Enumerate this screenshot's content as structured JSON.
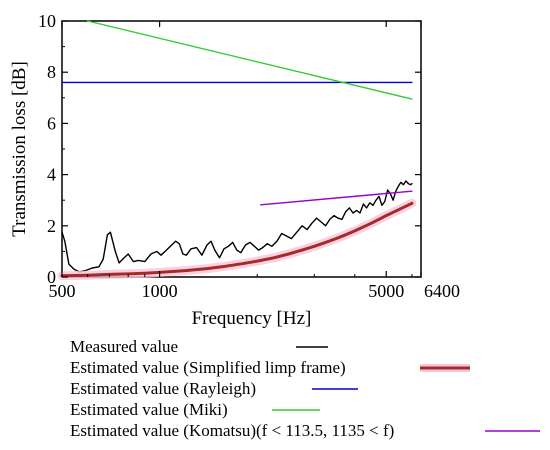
{
  "chart_data": {
    "type": "line",
    "xlabel": "Frequency [Hz]",
    "ylabel": "Transmission loss [dB]",
    "x_scale": "log",
    "xlim": [
      500,
      6400
    ],
    "ylim": [
      0,
      10
    ],
    "x_ticks": [
      {
        "value": 500,
        "label": "500"
      },
      {
        "value": 1000,
        "label": "1000"
      },
      {
        "value": 5000,
        "label": "5000"
      },
      {
        "value": 6400,
        "label": "6400"
      }
    ],
    "y_ticks": [
      {
        "value": 0,
        "label": "0"
      },
      {
        "value": 2,
        "label": "2"
      },
      {
        "value": 4,
        "label": "4"
      },
      {
        "value": 6,
        "label": "6"
      },
      {
        "value": 8,
        "label": "8"
      },
      {
        "value": 10,
        "label": "10"
      }
    ],
    "grid": false,
    "legend_position": "bottom",
    "series": [
      {
        "name": "Measured value",
        "color": "#000000",
        "x": [
          500,
          510,
          525,
          545,
          565,
          590,
          620,
          650,
          670,
          690,
          705,
          730,
          750,
          770,
          800,
          830,
          860,
          900,
          940,
          980,
          1010,
          1040,
          1080,
          1120,
          1150,
          1180,
          1210,
          1250,
          1300,
          1350,
          1400,
          1440,
          1480,
          1530,
          1580,
          1630,
          1680,
          1730,
          1780,
          1840,
          1900,
          1960,
          2020,
          2080,
          2150,
          2220,
          2300,
          2380,
          2460,
          2550,
          2650,
          2750,
          2850,
          2950,
          3050,
          3150,
          3250,
          3350,
          3450,
          3550,
          3650,
          3750,
          3850,
          3950,
          4050,
          4150,
          4250,
          4350,
          4450,
          4550,
          4650,
          4750,
          4850,
          4950,
          5050,
          5150,
          5250,
          5350,
          5450,
          5550,
          5650,
          5750,
          5850,
          5950,
          6000
        ],
        "y": [
          1.75,
          1.4,
          0.5,
          0.3,
          0.2,
          0.25,
          0.35,
          0.4,
          0.7,
          1.65,
          1.75,
          1.0,
          0.55,
          0.7,
          0.9,
          0.6,
          0.65,
          0.6,
          0.9,
          1.0,
          0.85,
          1.0,
          1.2,
          1.4,
          1.3,
          0.9,
          0.85,
          1.1,
          1.15,
          0.85,
          1.25,
          1.4,
          1.05,
          0.75,
          1.1,
          1.2,
          1.35,
          1.05,
          0.95,
          1.25,
          1.35,
          1.2,
          1.05,
          1.15,
          1.3,
          1.2,
          1.4,
          1.7,
          1.6,
          1.5,
          1.75,
          2.0,
          1.85,
          2.1,
          2.3,
          2.15,
          2.0,
          2.25,
          2.4,
          2.3,
          2.25,
          2.55,
          2.7,
          2.5,
          2.6,
          2.5,
          2.85,
          2.7,
          2.9,
          2.8,
          3.0,
          3.15,
          2.8,
          2.95,
          3.4,
          3.25,
          3.0,
          3.35,
          3.55,
          3.7,
          3.6,
          3.75,
          3.65,
          3.6,
          3.65
        ]
      },
      {
        "name": "Estimated value (Simplified limp frame)",
        "color": "#a52a2a",
        "x": [
          500,
          600,
          700,
          800,
          900,
          1000,
          1200,
          1400,
          1600,
          1800,
          2000,
          2250,
          2500,
          2750,
          3000,
          3250,
          3500,
          3750,
          4000,
          4500,
          5000,
          5500,
          6000
        ],
        "y": [
          0.05,
          0.07,
          0.1,
          0.12,
          0.15,
          0.18,
          0.25,
          0.33,
          0.42,
          0.52,
          0.62,
          0.75,
          0.9,
          1.05,
          1.2,
          1.35,
          1.5,
          1.65,
          1.8,
          2.1,
          2.4,
          2.65,
          2.88
        ]
      },
      {
        "name": "Estimated value (Rayleigh)",
        "color": "#0000cc",
        "x": [
          500,
          6000
        ],
        "y": [
          7.6,
          7.6
        ]
      },
      {
        "name": "Estimated value (Miki)",
        "color": "#33cc33",
        "x": [
          600,
          6000
        ],
        "y": [
          10.0,
          6.95
        ]
      },
      {
        "name": "Estimated value (Komatsu)(f < 113.5,  1135 < f)",
        "color": "#9900cc",
        "x": [
          2050,
          6000
        ],
        "y": [
          2.82,
          3.35
        ]
      }
    ],
    "legend": [
      {
        "label": "Measured value",
        "color": "#000000"
      },
      {
        "label": "Estimated value (Simplified limp frame)",
        "color": "#a52a2a"
      },
      {
        "label": "Estimated value (Rayleigh)",
        "color": "#0000cc"
      },
      {
        "label": "Estimated value (Miki)",
        "color": "#33cc33"
      },
      {
        "label": "Estimated value (Komatsu)(f < 113.5,  1135 < f)",
        "color": "#9900cc"
      }
    ]
  }
}
